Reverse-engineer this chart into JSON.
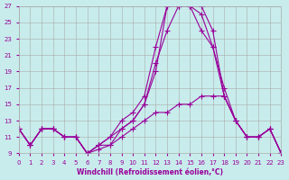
{
  "xlabel": "Windchill (Refroidissement éolien,°C)",
  "xlim": [
    0,
    23
  ],
  "ylim": [
    9,
    27
  ],
  "xticks": [
    0,
    1,
    2,
    3,
    4,
    5,
    6,
    7,
    8,
    9,
    10,
    11,
    12,
    13,
    14,
    15,
    16,
    17,
    18,
    19,
    20,
    21,
    22,
    23
  ],
  "yticks": [
    9,
    11,
    13,
    15,
    17,
    19,
    21,
    23,
    25,
    27
  ],
  "bg_color": "#c8ecec",
  "line_color": "#990099",
  "grid_color": "#aaaaaa",
  "lines": [
    {
      "x": [
        0,
        1,
        2,
        3,
        4,
        5,
        6,
        7,
        8,
        9,
        10,
        11,
        12,
        13,
        14,
        15,
        16,
        17,
        18,
        19,
        20,
        21,
        22,
        23
      ],
      "y": [
        12,
        10,
        12,
        12,
        11,
        11,
        9,
        10,
        10,
        11,
        12,
        13,
        14,
        14,
        15,
        15,
        16,
        16,
        16,
        13,
        11,
        11,
        12,
        9
      ]
    },
    {
      "x": [
        0,
        1,
        2,
        3,
        4,
        5,
        6,
        7,
        8,
        9,
        10,
        11,
        12,
        13,
        14,
        15,
        16,
        17,
        18,
        19,
        20,
        21,
        22,
        23
      ],
      "y": [
        12,
        10,
        12,
        12,
        11,
        11,
        9,
        10,
        11,
        12,
        13,
        15,
        20,
        24,
        27,
        27,
        26,
        22,
        17,
        13,
        11,
        11,
        12,
        9
      ]
    },
    {
      "x": [
        0,
        1,
        2,
        3,
        4,
        5,
        6,
        7,
        8,
        9,
        10,
        11,
        12,
        13,
        14,
        15,
        16,
        17,
        18,
        19,
        20,
        21,
        22,
        23
      ],
      "y": [
        12,
        10,
        12,
        12,
        11,
        11,
        9,
        10,
        11,
        13,
        14,
        16,
        22,
        27,
        27,
        27,
        27,
        24,
        16,
        13,
        11,
        11,
        12,
        9
      ]
    },
    {
      "x": [
        0,
        1,
        2,
        3,
        4,
        5,
        6,
        7,
        8,
        9,
        10,
        11,
        12,
        13,
        14,
        15,
        16,
        17,
        18,
        19,
        20,
        21,
        22,
        23
      ],
      "y": [
        12,
        10,
        12,
        12,
        11,
        11,
        9,
        9.5,
        10,
        12,
        13,
        15,
        19,
        27,
        27,
        27,
        24,
        22,
        16,
        13,
        11,
        11,
        12,
        9
      ]
    }
  ]
}
